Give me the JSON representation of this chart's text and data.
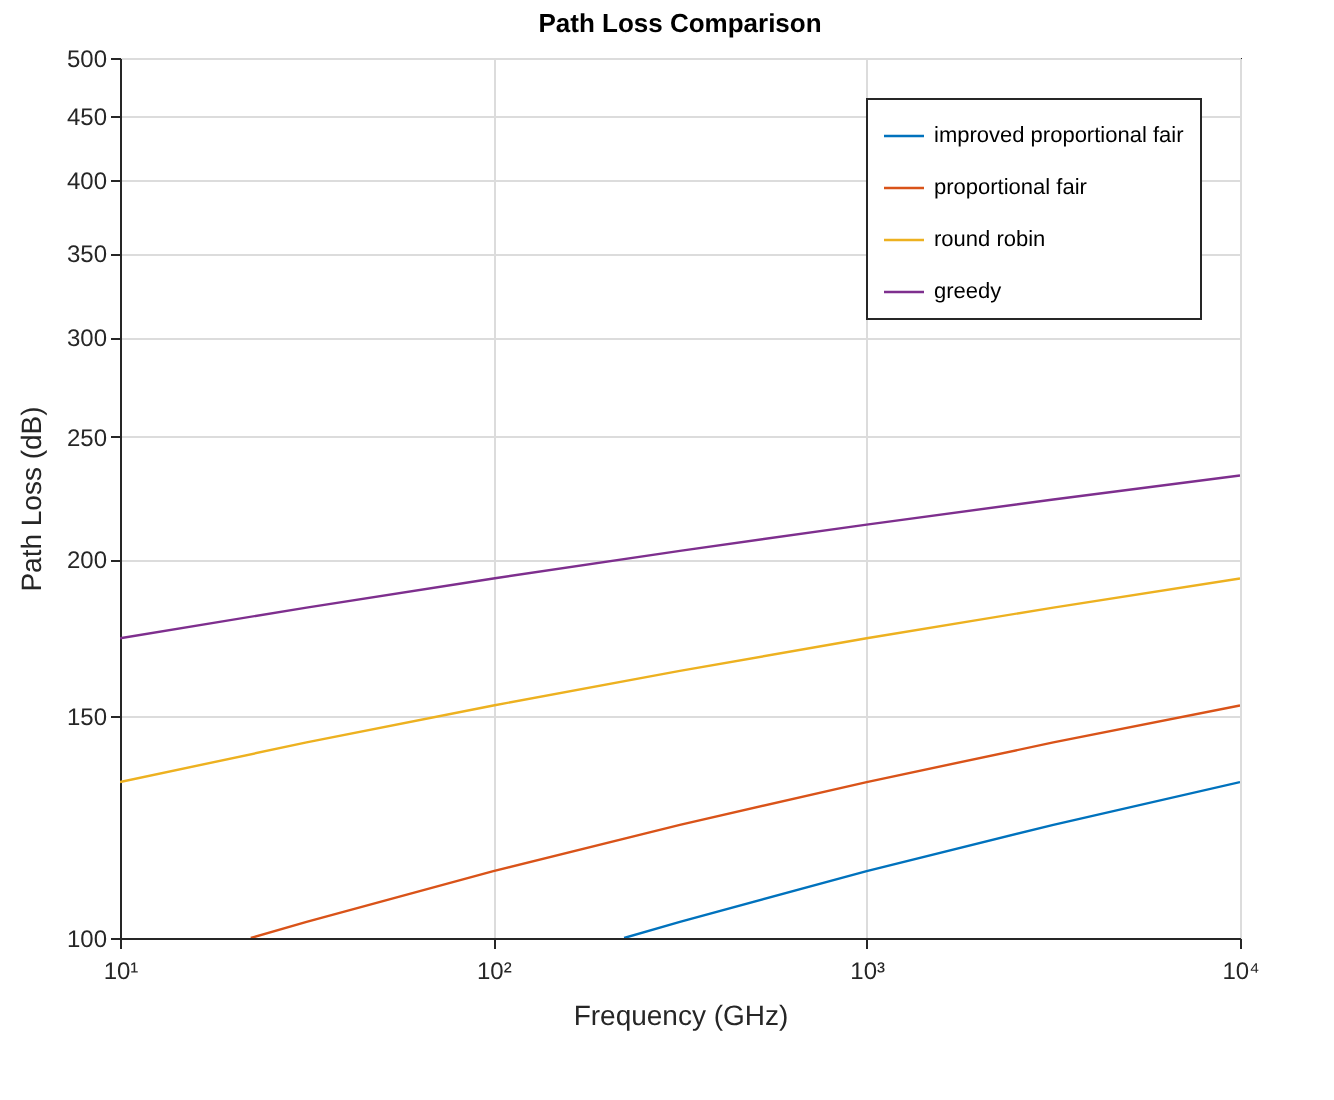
{
  "chart_data": {
    "type": "line",
    "title": "Path Loss Comparison",
    "xlabel": "Frequency (GHz)",
    "ylabel": "Path Loss (dB)",
    "log": "xy",
    "xlim": [
      10,
      10000
    ],
    "ylim": [
      100,
      500
    ],
    "xticks": [
      {
        "value": 10,
        "label": "10¹"
      },
      {
        "value": 100,
        "label": "10²"
      },
      {
        "value": 1000,
        "label": "10³"
      },
      {
        "value": 10000,
        "label": "10⁴"
      }
    ],
    "yticks": [
      100,
      150,
      200,
      250,
      300,
      350,
      400,
      450,
      500
    ],
    "grid": true,
    "legend": "top right",
    "line_style": "solid",
    "series": [
      {
        "name": "improved proportional fair",
        "color": "#0072bd",
        "x": [
          224,
          316,
          1000,
          3162,
          10000
        ],
        "values": [
          100,
          103,
          113,
          123,
          133
        ]
      },
      {
        "name": "proportional fair",
        "color": "#d95319",
        "x": [
          22.4,
          31.6,
          100,
          316,
          1000,
          3162,
          10000
        ],
        "values": [
          100,
          103,
          113,
          123,
          133,
          143,
          153
        ]
      },
      {
        "name": "round robin",
        "color": "#edb120",
        "x": [
          10,
          31.6,
          100,
          316,
          1000,
          3162,
          10000
        ],
        "values": [
          133,
          143,
          153,
          163,
          173,
          183,
          193
        ]
      },
      {
        "name": "greedy",
        "color": "#7e2f8e",
        "x": [
          10,
          31.6,
          100,
          316,
          1000,
          3162,
          10000
        ],
        "values": [
          173,
          183,
          193,
          203,
          213,
          223,
          233
        ]
      }
    ]
  }
}
